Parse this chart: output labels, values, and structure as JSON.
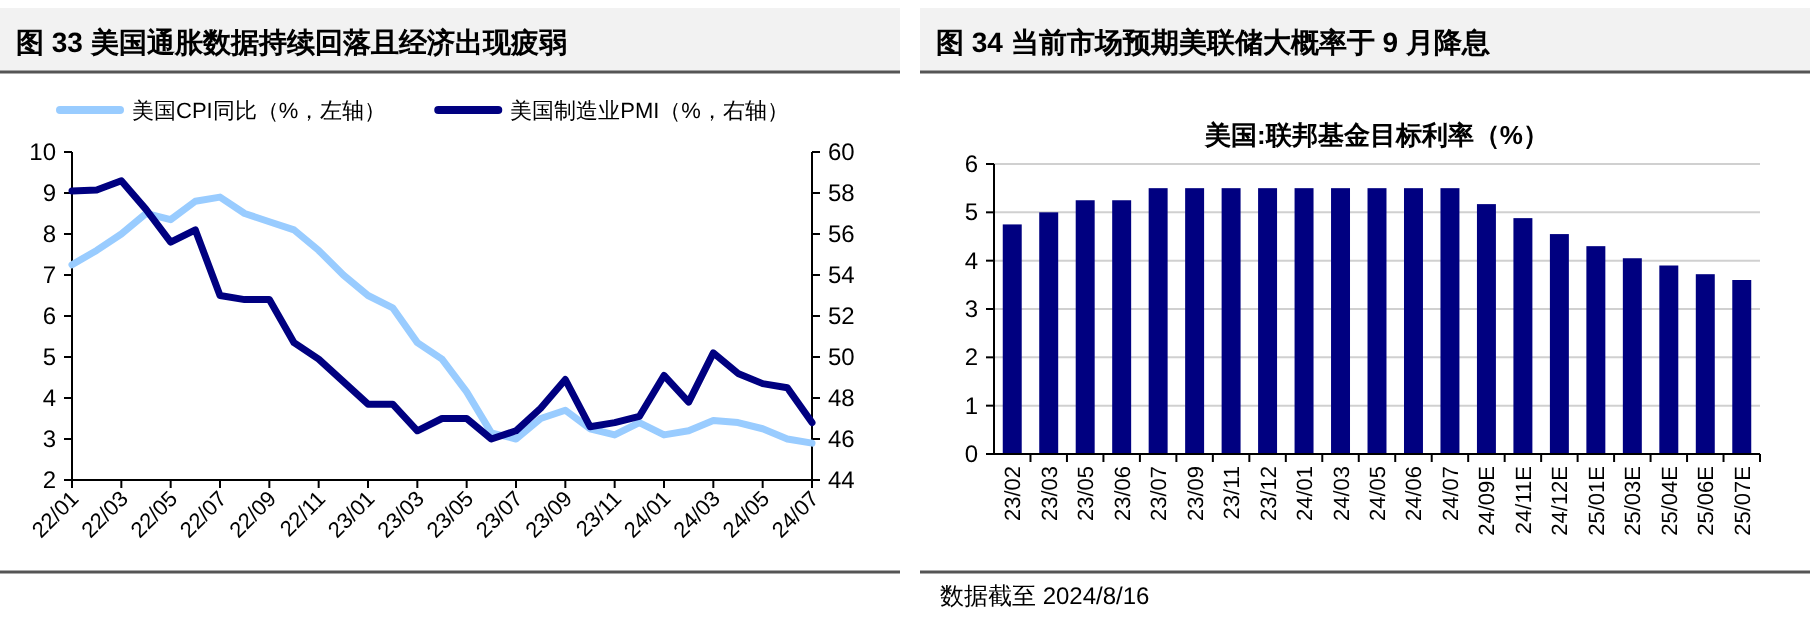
{
  "chart_data": [
    {
      "type": "line",
      "title": "图 33   美国通胀数据持续回落且经济出现疲弱",
      "x": [
        "2022-01",
        "2022-02",
        "2022-03",
        "2022-04",
        "2022-05",
        "2022-06",
        "2022-07",
        "2022-08",
        "2022-09",
        "2022-10",
        "2022-11",
        "2022-12",
        "2023-01",
        "2023-02",
        "2023-03",
        "2023-04",
        "2023-05",
        "2023-06",
        "2023-07",
        "2023-08",
        "2023-09",
        "2023-10",
        "2023-11",
        "2023-12",
        "2024-01",
        "2024-02",
        "2024-03",
        "2024-04",
        "2024-05",
        "2024-06",
        "2024-07"
      ],
      "series": [
        {
          "name": "美国CPI同比（%，左轴）",
          "color": "#99ccff",
          "values": [
            7.25,
            7.6,
            8.0,
            8.5,
            8.35,
            8.8,
            8.9,
            8.5,
            8.3,
            8.1,
            7.6,
            7.0,
            6.5,
            6.2,
            5.35,
            4.95,
            4.15,
            3.15,
            3.0,
            3.5,
            3.7,
            3.25,
            3.1,
            3.4,
            3.1,
            3.2,
            3.45,
            3.4,
            3.25,
            3.0,
            2.9
          ]
        },
        {
          "name": "美国制造业PMI（%，右轴）",
          "color": "#000080",
          "axis": "y2",
          "values": [
            58.1,
            58.15,
            58.6,
            57.2,
            55.6,
            56.2,
            53.0,
            52.8,
            52.8,
            50.7,
            49.9,
            48.8,
            47.7,
            47.7,
            46.4,
            47.0,
            47.0,
            46.0,
            46.4,
            47.5,
            48.9,
            46.6,
            46.8,
            47.1,
            49.1,
            47.8,
            50.2,
            49.2,
            48.7,
            48.5,
            46.8
          ]
        }
      ],
      "xlim": [
        "2022-01",
        "2024-07"
      ],
      "xticks": [
        {
          "value": "2022-01",
          "label": "22/01"
        },
        {
          "value": "2022-03",
          "label": "22/03"
        },
        {
          "value": "2022-05",
          "label": "22/05"
        },
        {
          "value": "2022-07",
          "label": "22/07"
        },
        {
          "value": "2022-09",
          "label": "22/09"
        },
        {
          "value": "2022-11",
          "label": "22/11"
        },
        {
          "value": "2023-01",
          "label": "23/01"
        },
        {
          "value": "2023-03",
          "label": "23/03"
        },
        {
          "value": "2023-05",
          "label": "23/05"
        },
        {
          "value": "2023-07",
          "label": "23/07"
        },
        {
          "value": "2023-09",
          "label": "23/09"
        },
        {
          "value": "2023-11",
          "label": "23/11"
        },
        {
          "value": "2024-01",
          "label": "24/01"
        },
        {
          "value": "2024-03",
          "label": "24/03"
        },
        {
          "value": "2024-05",
          "label": "24/05"
        },
        {
          "value": "2024-07",
          "label": "24/07"
        }
      ],
      "ylim": [
        2,
        10
      ],
      "yticks": [
        2,
        3,
        4,
        5,
        6,
        7,
        8,
        9,
        10
      ],
      "y2lim": [
        44,
        60
      ],
      "y2ticks": [
        44,
        46,
        48,
        50,
        52,
        54,
        56,
        58,
        60
      ],
      "legend": "top"
    },
    {
      "type": "bar",
      "title": "图 34   当前市场预期美联储大概率于 9 月降息",
      "subtitle": "美国:联邦基金目标利率（%）",
      "categories": [
        "23/02",
        "23/03",
        "23/05",
        "23/06",
        "23/07",
        "23/09",
        "23/11",
        "23/12",
        "24/01",
        "24/03",
        "24/05",
        "24/06",
        "24/07",
        "24/09E",
        "24/11E",
        "24/12E",
        "25/01E",
        "25/03E",
        "25/04E",
        "25/06E",
        "25/07E"
      ],
      "values": [
        4.75,
        5.0,
        5.25,
        5.25,
        5.5,
        5.5,
        5.5,
        5.5,
        5.5,
        5.5,
        5.5,
        5.5,
        5.5,
        5.17,
        4.88,
        4.55,
        4.3,
        4.05,
        3.9,
        3.72,
        3.6
      ],
      "color": "#000080",
      "ylim": [
        0,
        6
      ],
      "yticks": [
        0,
        1,
        2,
        3,
        4,
        5,
        6
      ],
      "grid": "y",
      "annotations": [
        "数据截至 2024/8/16"
      ]
    }
  ]
}
